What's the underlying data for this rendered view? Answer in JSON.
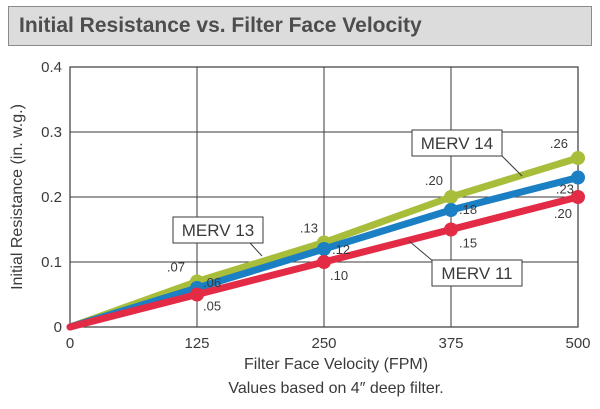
{
  "header": {
    "title": "Initial Resistance vs. Filter Face Velocity"
  },
  "footnote": "Values based on 4″ deep filter.",
  "colors": {
    "merv14": "#a8bd3a",
    "merv13": "#1b7fc4",
    "merv11": "#e32b46",
    "grid": "#3a3a3a"
  },
  "chart_data": {
    "type": "line",
    "xlabel": "Filter Face Velocity (FPM)",
    "ylabel": "Initial Resistance (in. w.g.)",
    "xlim": [
      0,
      500
    ],
    "ylim": [
      0,
      0.4
    ],
    "x_ticks": [
      "0",
      "125",
      "250",
      "375",
      "500"
    ],
    "y_ticks": [
      "0",
      "0.1",
      "0.2",
      "0.3",
      "0.4"
    ],
    "grid": true,
    "x": [
      0,
      125,
      250,
      375,
      500
    ],
    "series": [
      {
        "name": "MERV 14",
        "values": [
          0,
          0.07,
          0.13,
          0.2,
          0.26
        ],
        "labels": [
          "",
          ".07",
          ".13",
          ".20",
          ".26"
        ]
      },
      {
        "name": "MERV 13",
        "values": [
          0,
          0.06,
          0.12,
          0.18,
          0.23
        ],
        "labels": [
          "",
          ".06",
          ".12",
          ".18",
          ".23"
        ]
      },
      {
        "name": "MERV 11",
        "values": [
          0,
          0.05,
          0.1,
          0.15,
          0.2
        ],
        "labels": [
          "",
          ".05",
          ".10",
          ".15",
          ".20"
        ]
      }
    ]
  }
}
